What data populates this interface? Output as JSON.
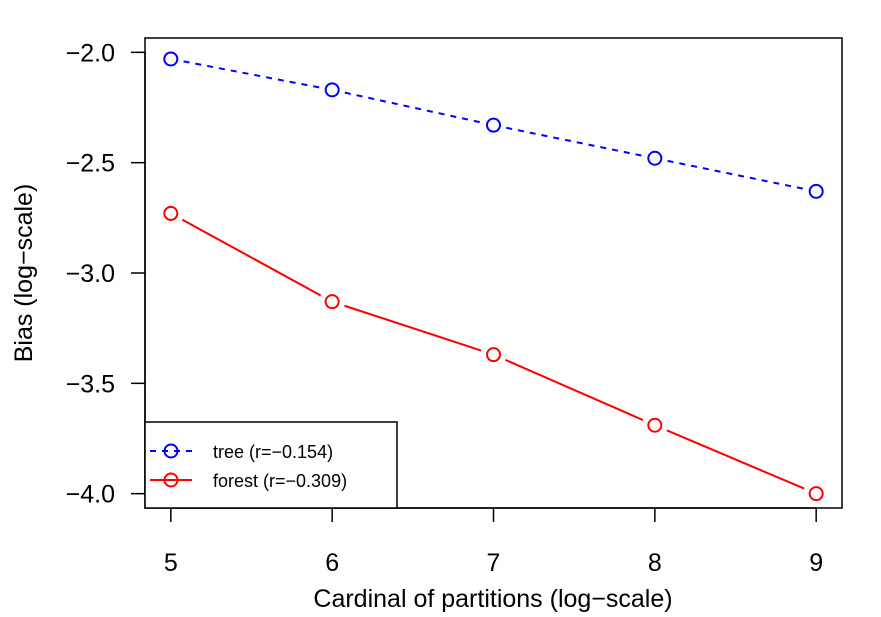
{
  "chart_data": {
    "type": "line",
    "title": "",
    "xlabel": "Cardinal of partitions (log−scale)",
    "ylabel": "Bias (log−scale)",
    "xlim": [
      4.84,
      9.16
    ],
    "ylim": [
      -4.065,
      -1.935
    ],
    "x_ticks": [
      5,
      6,
      7,
      8,
      9
    ],
    "x_tick_labels": [
      "5",
      "6",
      "7",
      "8",
      "9"
    ],
    "y_ticks": [
      -2.0,
      -2.5,
      -3.0,
      -3.5,
      -4.0
    ],
    "y_tick_labels": [
      "−2.0",
      "−2.5",
      "−3.0",
      "−3.5",
      "−4.0"
    ],
    "legend_position": "bottom-left",
    "grid": false,
    "series": [
      {
        "name": "tree (r=−0.154)",
        "color": "#0000ff",
        "line_style": "dashed",
        "marker": "open-circle",
        "x": [
          5,
          6,
          7,
          8,
          9
        ],
        "y": [
          -2.03,
          -2.17,
          -2.33,
          -2.48,
          -2.63
        ]
      },
      {
        "name": "forest (r=−0.309)",
        "color": "#ff0000",
        "line_style": "solid",
        "marker": "open-circle",
        "x": [
          5,
          6,
          7,
          8,
          9
        ],
        "y": [
          -2.73,
          -3.13,
          -3.37,
          -3.69,
          -4.0
        ]
      }
    ]
  }
}
